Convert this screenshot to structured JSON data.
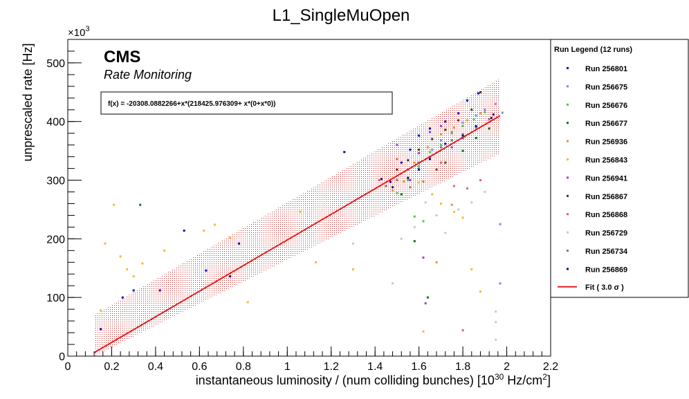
{
  "chart_data": {
    "type": "scatter",
    "title": "L1_SingleMuOpen",
    "xlabel": "instantaneous luminosity / (num colliding bunches) [10",
    "xlabel_exp": "30",
    "xlabel_mid": " Hz/cm",
    "xlabel_exp2": "2",
    "xlabel_end": "]",
    "ylabel": "unprescaled rate [Hz]",
    "y_multiplier": "×10",
    "y_multiplier_exp": "3",
    "xlim": [
      0,
      2.2
    ],
    "ylim": [
      0,
      540
    ],
    "x_ticks": [
      "0",
      "0.2",
      "0.4",
      "0.6",
      "0.8",
      "1",
      "1.2",
      "1.4",
      "1.6",
      "1.8",
      "2",
      "2.2"
    ],
    "y_ticks": [
      "0",
      "100",
      "200",
      "300",
      "400",
      "500"
    ],
    "grid": false,
    "cms_label": "CMS",
    "cms_sublabel": "Rate Monitoring",
    "fit_formula": "f(x) = -20308.0882266+x*(218425.976309+ x*(0+x*0))",
    "fit": {
      "intercept": -20.308,
      "slope": 218.426,
      "x_range": [
        0.12,
        1.97
      ],
      "band_halfwidth": 64
    },
    "legend_title": "Run Legend (12 runs)",
    "legend_position": "right",
    "series": [
      {
        "name": "Run 256801",
        "color": "#0a0ab4",
        "points": [
          [
            0.15,
            46
          ],
          [
            0.25,
            100
          ],
          [
            0.3,
            112
          ],
          [
            0.42,
            112
          ],
          [
            0.53,
            214
          ],
          [
            0.63,
            146
          ],
          [
            0.78,
            192
          ],
          [
            1.47,
            297
          ],
          [
            1.52,
            330
          ],
          [
            1.56,
            352
          ],
          [
            1.6,
            376
          ],
          [
            1.65,
            388
          ],
          [
            1.72,
            400
          ],
          [
            1.78,
            414
          ],
          [
            1.82,
            436
          ],
          [
            1.87,
            448
          ],
          [
            1.93,
            406
          ]
        ]
      },
      {
        "name": "Run 256675",
        "color": "#6f8cf0",
        "points": [
          [
            1.55,
            300
          ],
          [
            1.6,
            320
          ],
          [
            1.66,
            352
          ],
          [
            1.7,
            368
          ],
          [
            1.75,
            380
          ],
          [
            1.8,
            398
          ],
          [
            1.86,
            410
          ],
          [
            1.9,
            420
          ],
          [
            1.95,
            430
          ],
          [
            1.98,
            415
          ],
          [
            1.97,
            225
          ],
          [
            1.97,
            124
          ]
        ]
      },
      {
        "name": "Run 256676",
        "color": "#4ec34e",
        "points": [
          [
            1.5,
            278
          ],
          [
            1.55,
            300
          ],
          [
            1.6,
            324
          ],
          [
            1.65,
            348
          ],
          [
            1.7,
            360
          ],
          [
            1.75,
            382
          ],
          [
            1.8,
            392
          ],
          [
            1.85,
            404
          ],
          [
            1.9,
            416
          ],
          [
            1.58,
            238
          ],
          [
            1.62,
            230
          ]
        ]
      },
      {
        "name": "Run 256677",
        "color": "#0a6e14",
        "points": [
          [
            0.33,
            258
          ],
          [
            1.52,
            276
          ],
          [
            1.58,
            196
          ],
          [
            1.64,
            100
          ],
          [
            1.68,
            318
          ],
          [
            1.72,
            330
          ],
          [
            1.8,
            350
          ],
          [
            1.86,
            372
          ],
          [
            1.92,
            388
          ]
        ]
      },
      {
        "name": "Run 256936",
        "color": "#f08c2d",
        "points": [
          [
            1.48,
            282
          ],
          [
            1.53,
            298
          ],
          [
            1.58,
            330
          ],
          [
            1.64,
            356
          ],
          [
            1.7,
            378
          ],
          [
            1.76,
            390
          ],
          [
            1.82,
            402
          ],
          [
            1.88,
            414
          ],
          [
            1.68,
            160
          ],
          [
            1.75,
            258
          ]
        ]
      },
      {
        "name": "Run 256843",
        "color": "#fab928",
        "points": [
          [
            0.15,
            78
          ],
          [
            0.17,
            192
          ],
          [
            0.21,
            258
          ],
          [
            0.24,
            170
          ],
          [
            0.27,
            148
          ],
          [
            0.3,
            136
          ],
          [
            0.34,
            158
          ],
          [
            0.44,
            180
          ],
          [
            0.62,
            214
          ],
          [
            0.67,
            224
          ],
          [
            0.74,
            202
          ],
          [
            0.82,
            92
          ],
          [
            1.06,
            246
          ],
          [
            1.13,
            160
          ],
          [
            1.3,
            148
          ],
          [
            1.6,
            296
          ],
          [
            1.66,
            276
          ],
          [
            1.7,
            260
          ],
          [
            1.76,
            246
          ],
          [
            1.8,
            236
          ],
          [
            1.84,
            148
          ],
          [
            1.88,
            110
          ],
          [
            1.62,
            42
          ]
        ]
      },
      {
        "name": "Run 256941",
        "color": "#a03cdc",
        "points": [
          [
            1.5,
            360
          ],
          [
            1.56,
            300
          ],
          [
            1.6,
            346
          ],
          [
            1.65,
            382
          ],
          [
            1.7,
            392
          ],
          [
            1.75,
            356
          ],
          [
            1.8,
            372
          ],
          [
            1.62,
            168
          ],
          [
            1.63,
            90
          ]
        ]
      },
      {
        "name": "Run 256867",
        "color": "#5a2d0a",
        "points": [
          [
            1.5,
            318
          ],
          [
            1.55,
            334
          ],
          [
            1.6,
            352
          ],
          [
            1.66,
            370
          ],
          [
            1.72,
            386
          ],
          [
            1.78,
            402
          ],
          [
            1.84,
            420
          ],
          [
            1.88,
            450
          ]
        ]
      },
      {
        "name": "Run 256868",
        "color": "#dc6464",
        "points": [
          [
            1.42,
            300
          ],
          [
            1.5,
            336
          ],
          [
            1.56,
            288
          ],
          [
            1.62,
            298
          ],
          [
            1.7,
            330
          ],
          [
            1.76,
            290
          ],
          [
            1.82,
            286
          ],
          [
            1.88,
            300
          ],
          [
            1.8,
            44
          ]
        ]
      },
      {
        "name": "Run 256729",
        "color": "#c8c8c8",
        "points": [
          [
            1.3,
            192
          ],
          [
            1.48,
            124
          ],
          [
            1.52,
            200
          ],
          [
            1.58,
            220
          ],
          [
            1.63,
            262
          ],
          [
            1.68,
            240
          ],
          [
            1.72,
            210
          ],
          [
            1.78,
            250
          ],
          [
            1.84,
            262
          ],
          [
            1.9,
            280
          ],
          [
            1.95,
            76
          ],
          [
            1.95,
            58
          ],
          [
            1.95,
            28
          ]
        ]
      },
      {
        "name": "Run 256734",
        "color": "#787878",
        "points": [
          [
            1.45,
            290
          ],
          [
            1.5,
            300
          ],
          [
            1.55,
            318
          ],
          [
            1.6,
            330
          ],
          [
            1.65,
            340
          ],
          [
            1.7,
            356
          ],
          [
            1.75,
            368
          ],
          [
            1.8,
            378
          ],
          [
            1.86,
            390
          ],
          [
            1.92,
            404
          ]
        ]
      },
      {
        "name": "Run 256869",
        "color": "#0a0a78",
        "points": [
          [
            0.74,
            136
          ],
          [
            1.26,
            348
          ],
          [
            1.43,
            302
          ],
          [
            1.48,
            288
          ],
          [
            1.55,
            304
          ],
          [
            1.6,
            318
          ],
          [
            1.65,
            336
          ],
          [
            1.72,
            362
          ],
          [
            1.8,
            376
          ],
          [
            1.86,
            392
          ],
          [
            1.94,
            412
          ]
        ]
      }
    ],
    "fit_legend": "Fit ( 3.0  σ )",
    "fit_color": "#e01e1e"
  }
}
